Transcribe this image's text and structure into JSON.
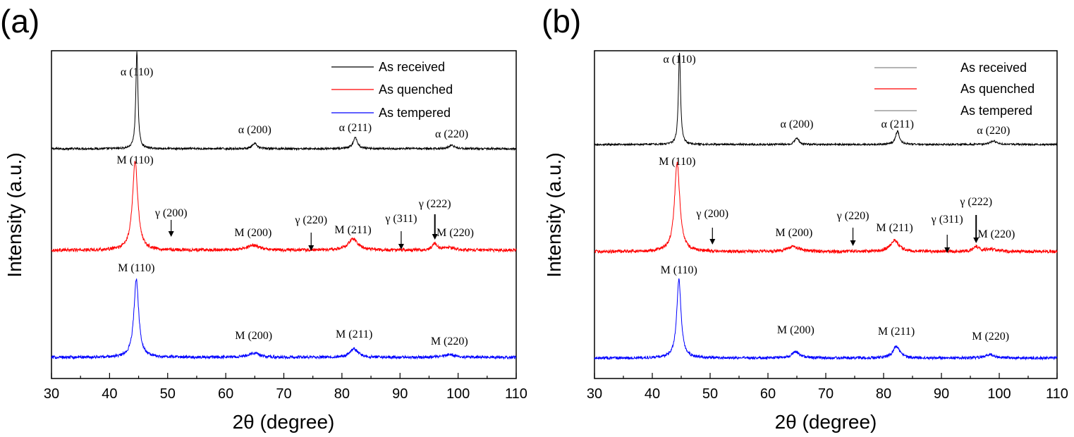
{
  "chart_data": [
    {
      "type": "line",
      "panel_label": "(a)",
      "xlabel": "2θ (degree)",
      "ylabel": "Intensity (a.u.)",
      "xlim": [
        30,
        110
      ],
      "xticks": [
        "30",
        "40",
        "50",
        "60",
        "70",
        "80",
        "90",
        "100",
        "110"
      ],
      "yticks_visible": false,
      "legend_position": "top-right",
      "series": [
        {
          "name": "As received",
          "color": "#000000",
          "peaks": [
            {
              "x": 44.7,
              "h": 115,
              "w": 0.22
            },
            {
              "x": 65.0,
              "h": 6,
              "w": 0.5
            },
            {
              "x": 82.3,
              "h": 13,
              "w": 0.45
            },
            {
              "x": 98.9,
              "h": 4,
              "w": 0.6
            }
          ],
          "noise": 1.2,
          "labels": [
            {
              "text": "α (110)",
              "x": 44.7
            },
            {
              "text": "α (200)",
              "x": 65.0
            },
            {
              "text": "α (211)",
              "x": 82.3
            },
            {
              "text": "α (220)",
              "x": 98.9
            }
          ]
        },
        {
          "name": "As quenched",
          "color": "#ff0000",
          "peaks": [
            {
              "x": 44.4,
              "h": 110,
              "w": 0.55
            },
            {
              "x": 64.7,
              "h": 6,
              "w": 1.2
            },
            {
              "x": 81.9,
              "h": 14,
              "w": 1.0
            },
            {
              "x": 96.0,
              "h": 8,
              "w": 0.5
            },
            {
              "x": 98.5,
              "h": 3,
              "w": 1.2
            }
          ],
          "noise": 2.0,
          "labels": [
            {
              "text": "M (110)",
              "x": 44.4
            },
            {
              "text": "γ (200)",
              "x": 50.6
            },
            {
              "text": "M (200)",
              "x": 64.7
            },
            {
              "text": "γ (220)",
              "x": 74.7
            },
            {
              "text": "M (211)",
              "x": 81.9
            },
            {
              "text": "γ (311)",
              "x": 90.2
            },
            {
              "text": "γ (222)",
              "x": 96.0
            },
            {
              "text": "M (220)",
              "x": 99.5
            }
          ]
        },
        {
          "name": "As tempered",
          "color": "#0000ff",
          "peaks": [
            {
              "x": 44.6,
              "h": 105,
              "w": 0.5
            },
            {
              "x": 64.8,
              "h": 6,
              "w": 1.1
            },
            {
              "x": 82.1,
              "h": 12,
              "w": 0.8
            },
            {
              "x": 98.5,
              "h": 4,
              "w": 1.1
            }
          ],
          "noise": 2.0,
          "labels": [
            {
              "text": "M (110)",
              "x": 44.6
            },
            {
              "text": "M (200)",
              "x": 64.8
            },
            {
              "text": "M (211)",
              "x": 82.1
            },
            {
              "text": "M (220)",
              "x": 98.5
            }
          ]
        }
      ]
    },
    {
      "type": "line",
      "panel_label": "(b)",
      "xlabel": "2θ (degree)",
      "ylabel": "Intensity (a.u.)",
      "xlim": [
        30,
        110
      ],
      "xticks": [
        "30",
        "40",
        "50",
        "60",
        "70",
        "80",
        "90",
        "100",
        "110"
      ],
      "yticks_visible": false,
      "legend_position": "top-right",
      "series": [
        {
          "name": "As received",
          "color": "#000000",
          "peaks": [
            {
              "x": 44.7,
              "h": 125,
              "w": 0.22
            },
            {
              "x": 65.0,
              "h": 9,
              "w": 0.4
            },
            {
              "x": 82.4,
              "h": 18,
              "w": 0.4
            },
            {
              "x": 99.0,
              "h": 5,
              "w": 0.6
            }
          ],
          "noise": 1.2,
          "labels": [
            {
              "text": "α (110)",
              "x": 44.7
            },
            {
              "text": "α (200)",
              "x": 65.0
            },
            {
              "text": "α (211)",
              "x": 82.4
            },
            {
              "text": "α (220)",
              "x": 99.0
            }
          ]
        },
        {
          "name": "As quenched",
          "color": "#ff0000",
          "peaks": [
            {
              "x": 44.3,
              "h": 110,
              "w": 0.55
            },
            {
              "x": 64.5,
              "h": 6,
              "w": 1.2
            },
            {
              "x": 81.9,
              "h": 14,
              "w": 0.9
            },
            {
              "x": 96.0,
              "h": 6,
              "w": 0.5
            },
            {
              "x": 98.5,
              "h": 3,
              "w": 1.2
            }
          ],
          "noise": 2.0,
          "labels": [
            {
              "text": "M (110)",
              "x": 44.3
            },
            {
              "text": "γ (200)",
              "x": 50.4
            },
            {
              "text": "M (200)",
              "x": 64.5
            },
            {
              "text": "γ (220)",
              "x": 74.7
            },
            {
              "text": "M (211)",
              "x": 81.9
            },
            {
              "text": "γ (311)",
              "x": 91.0
            },
            {
              "text": "γ (222)",
              "x": 96.0
            },
            {
              "text": "M (220)",
              "x": 99.5
            }
          ]
        },
        {
          "name": "As tempered",
          "color": "#0000ff",
          "peaks": [
            {
              "x": 44.6,
              "h": 112,
              "w": 0.45
            },
            {
              "x": 64.8,
              "h": 9,
              "w": 0.8
            },
            {
              "x": 82.2,
              "h": 17,
              "w": 0.7
            },
            {
              "x": 98.5,
              "h": 5,
              "w": 1.0
            }
          ],
          "noise": 2.0,
          "labels": [
            {
              "text": "M (110)",
              "x": 44.6
            },
            {
              "text": "M (200)",
              "x": 64.8
            },
            {
              "text": "M (211)",
              "x": 82.2
            },
            {
              "text": "M (220)",
              "x": 98.5
            }
          ]
        }
      ]
    }
  ]
}
